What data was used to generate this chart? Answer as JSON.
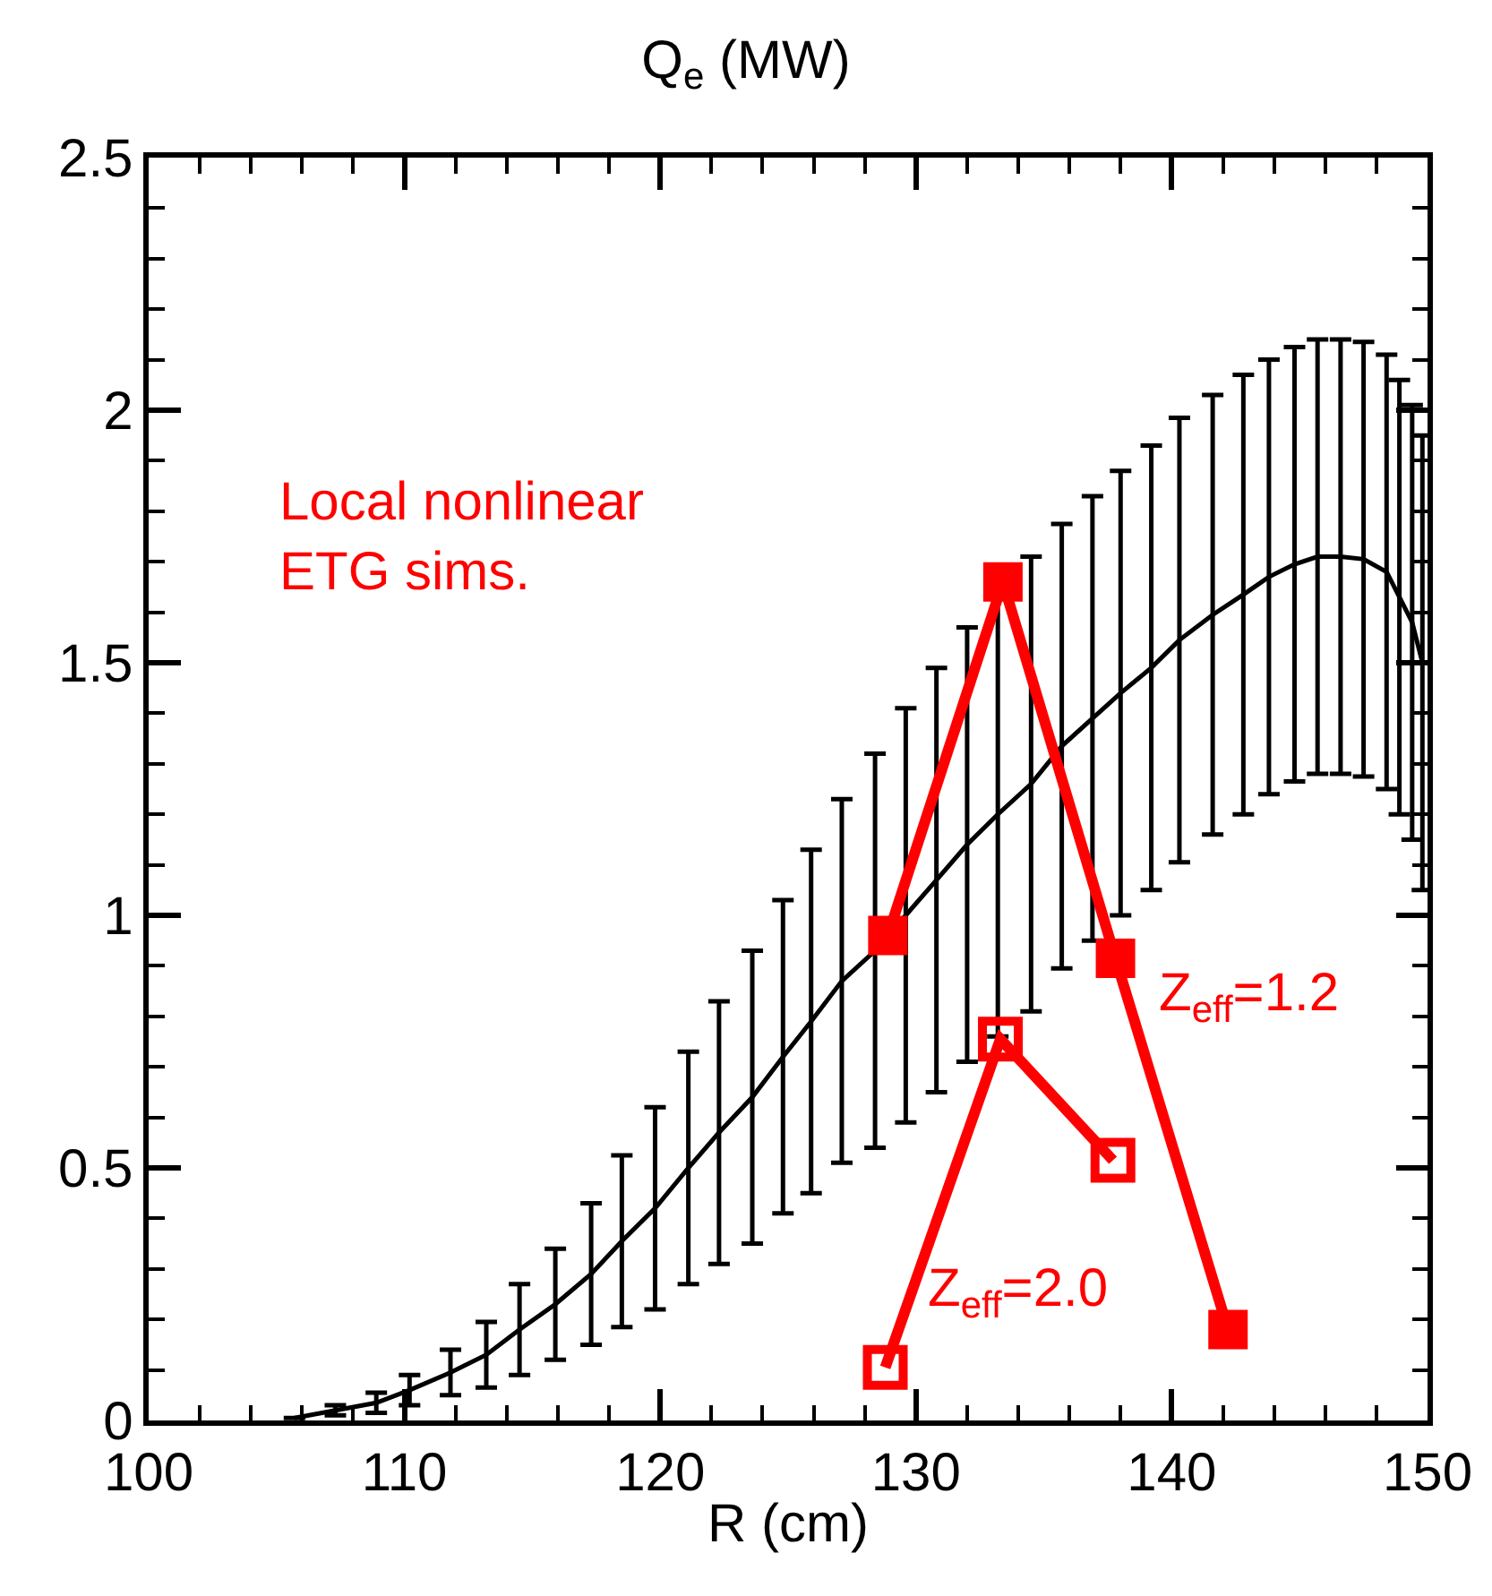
{
  "chart_data": {
    "type": "line",
    "title": "Q$_{e}$ (MW)",
    "xlabel": "R (cm)",
    "xlim": [
      100,
      150
    ],
    "xticks": [
      100,
      110,
      120,
      130,
      140,
      150
    ],
    "ylim": [
      0,
      2.5
    ],
    "yticks": [
      0,
      0.5,
      1,
      1.5,
      2,
      2.5
    ],
    "legend": false,
    "series": [
      {
        "color": "#000000",
        "marker": "none",
        "line_style": "solid",
        "x": [
          105.7,
          107.3,
          108.9,
          110.2,
          111.8,
          113.2,
          114.5,
          115.9,
          117.3,
          118.5,
          119.8,
          121.1,
          122.3,
          123.6,
          124.8,
          125.9,
          127.1,
          128.4,
          129.6,
          130.8,
          132.0,
          133.2,
          134.5,
          135.7,
          136.9,
          138.0,
          139.2,
          140.3,
          141.6,
          142.8,
          143.8,
          144.8,
          145.7,
          146.6,
          147.5,
          148.4,
          148.9,
          149.4,
          149.8
        ],
        "values": [
          0.005,
          0.02,
          0.035,
          0.06,
          0.095,
          0.13,
          0.18,
          0.23,
          0.29,
          0.355,
          0.42,
          0.5,
          0.57,
          0.64,
          0.72,
          0.79,
          0.87,
          0.93,
          1.0,
          1.07,
          1.14,
          1.2,
          1.26,
          1.335,
          1.39,
          1.44,
          1.49,
          1.545,
          1.595,
          1.635,
          1.67,
          1.695,
          1.71,
          1.71,
          1.705,
          1.68,
          1.63,
          1.58,
          1.5
        ],
        "errors": [
          null,
          0.01,
          0.02,
          0.03,
          0.045,
          0.065,
          0.09,
          0.11,
          0.14,
          0.17,
          0.2,
          0.23,
          0.26,
          0.29,
          0.31,
          0.34,
          0.36,
          0.39,
          0.41,
          0.42,
          0.43,
          0.44,
          0.45,
          0.44,
          0.44,
          0.44,
          0.44,
          0.44,
          0.435,
          0.435,
          0.43,
          0.43,
          0.43,
          0.43,
          0.43,
          0.43,
          0.43,
          0.43,
          0.45
        ]
      },
      {
        "name": "Z$_{eff}$=1.2",
        "color": "#ff0000",
        "marker": "square",
        "line_style": "solid",
        "x": [
          128.9,
          133.4,
          137.8,
          142.2
        ],
        "values": [
          0.96,
          1.66,
          0.915,
          0.18
        ]
      },
      {
        "name": "Z$_{eff}$=2.0",
        "color": "#ff0000",
        "marker": "square-open",
        "line_style": "solid",
        "x": [
          128.8,
          133.3,
          137.7
        ],
        "values": [
          0.105,
          0.755,
          0.515
        ]
      }
    ],
    "annotations": [
      "Local nonlinear\nETG sims."
    ]
  }
}
